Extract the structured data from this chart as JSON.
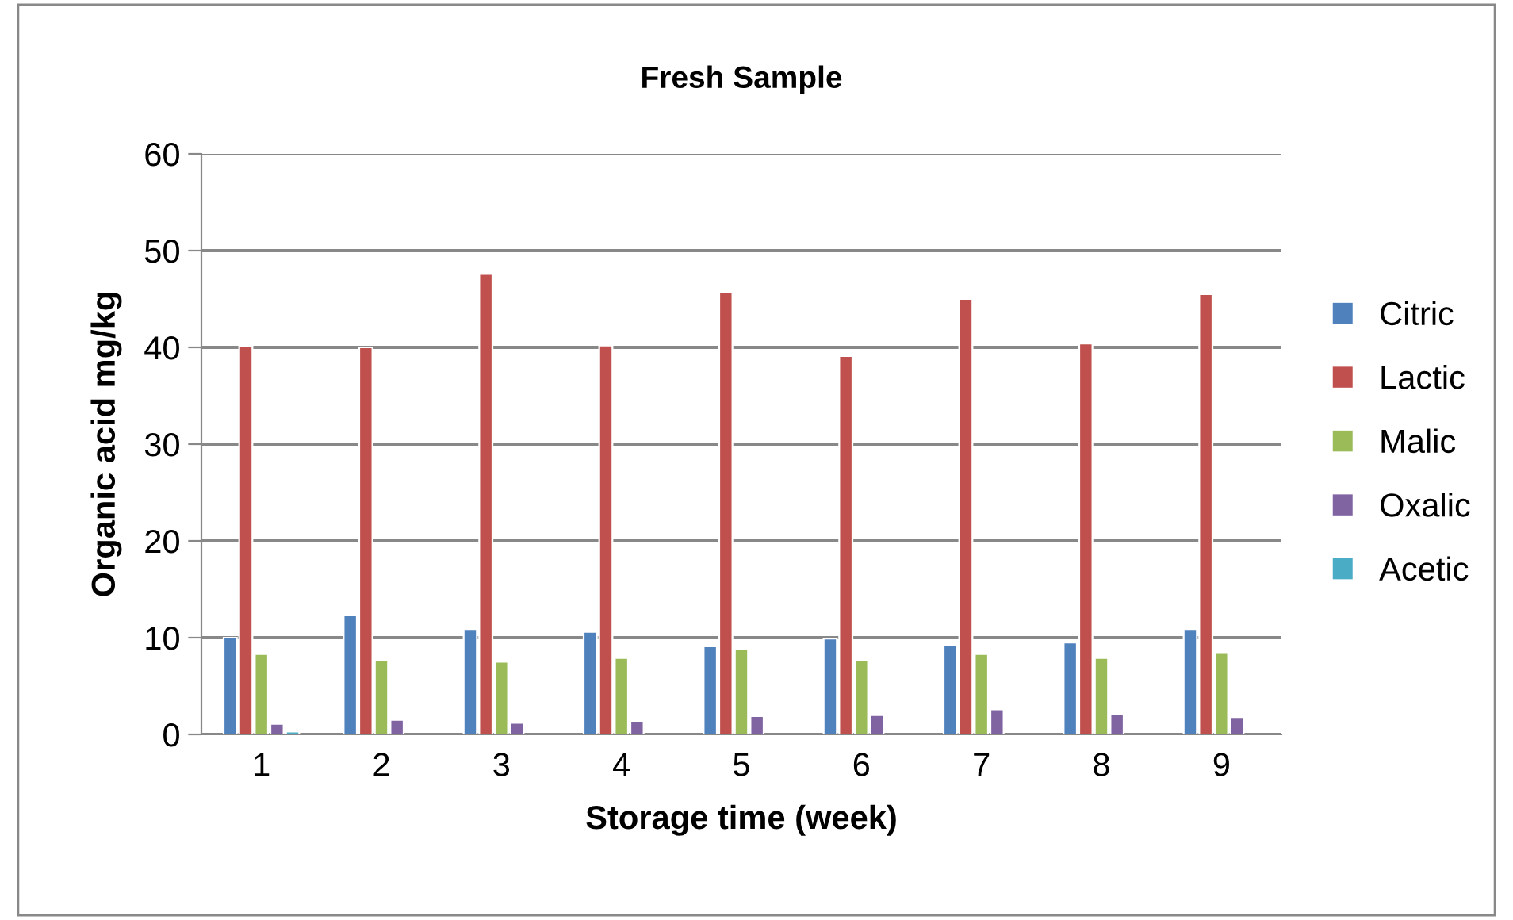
{
  "chart_data": {
    "type": "bar",
    "title": "Fresh Sample",
    "xlabel": "Storage time (week)",
    "ylabel": "Organic acid mg/kg",
    "categories": [
      "1",
      "2",
      "3",
      "4",
      "5",
      "6",
      "7",
      "8",
      "9"
    ],
    "series": [
      {
        "name": "Citric",
        "color": "#4f81bd",
        "values": [
          10,
          12.3,
          10.9,
          10.6,
          9.1,
          9.9,
          9.2,
          9.5,
          10.9
        ]
      },
      {
        "name": "Lactic",
        "color": "#c0504d",
        "values": [
          40.1,
          40,
          47.6,
          40.2,
          45.7,
          39.1,
          45,
          40.4,
          45.5
        ]
      },
      {
        "name": "Malic",
        "color": "#9bbb59",
        "values": [
          8.3,
          7.7,
          7.5,
          7.9,
          8.8,
          7.7,
          8.3,
          7.9,
          8.5
        ]
      },
      {
        "name": "Oxalic",
        "color": "#8064a2",
        "values": [
          1.1,
          1.5,
          1.2,
          1.4,
          1.9,
          2.0,
          2.6,
          2.1,
          1.8
        ]
      },
      {
        "name": "Acetic",
        "color": "#4bacc6",
        "values": [
          0.3,
          null,
          null,
          null,
          null,
          null,
          null,
          null,
          null
        ]
      }
    ],
    "ylim": [
      0,
      60
    ],
    "yticks": [
      0,
      10,
      20,
      30,
      40,
      50,
      60
    ],
    "grid": "y",
    "legend": "right"
  }
}
